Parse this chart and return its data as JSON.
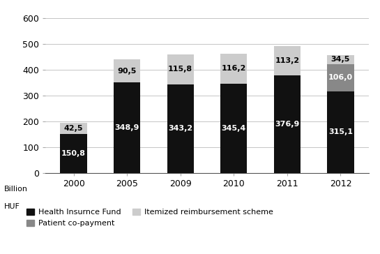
{
  "categories": [
    "2000",
    "2005",
    "2009",
    "2010",
    "2011",
    "2012"
  ],
  "health_fund": [
    150.8,
    348.9,
    343.2,
    345.4,
    376.9,
    315.1
  ],
  "patient_copay": [
    0.0,
    0.0,
    0.0,
    0.0,
    0.0,
    106.0
  ],
  "itemized": [
    42.5,
    90.5,
    115.8,
    116.2,
    113.2,
    34.5
  ],
  "health_fund_color": "#111111",
  "patient_copay_color": "#888888",
  "itemized_color": "#cccccc",
  "ylim": [
    0,
    620
  ],
  "yticks": [
    0,
    100,
    200,
    300,
    400,
    500,
    600
  ],
  "legend_labels": [
    "Health Insurnce Fund",
    "Patient co-payment",
    "Itemized reimbursement scheme"
  ],
  "bar_width": 0.5
}
